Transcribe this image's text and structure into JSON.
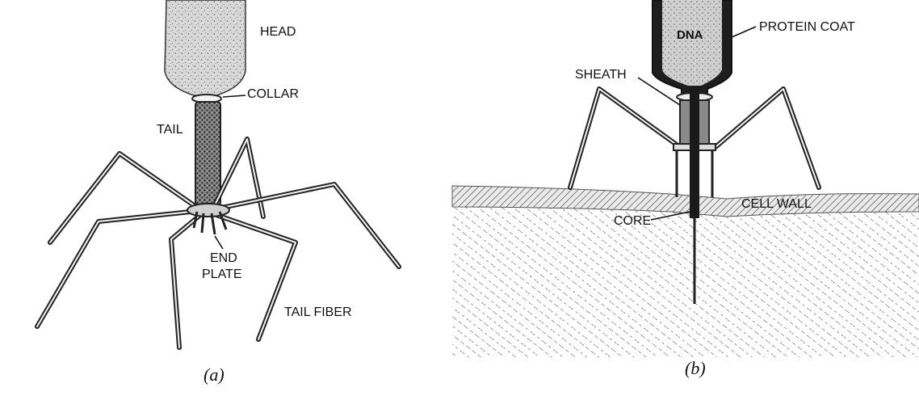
{
  "panel_a": {
    "labels": {
      "head": "HEAD",
      "collar": "COLLAR",
      "tail": "TAIL",
      "end_plate_line1": "END",
      "end_plate_line2": "PLATE",
      "tail_fiber": "TAIL FIBER"
    },
    "caption": "(a)"
  },
  "panel_b": {
    "labels": {
      "dna": "DNA",
      "protein_coat": "PROTEIN COAT",
      "sheath": "SHEATH",
      "cell_wall": "CELL WALL",
      "core": "CORE"
    },
    "caption": "(b)"
  }
}
